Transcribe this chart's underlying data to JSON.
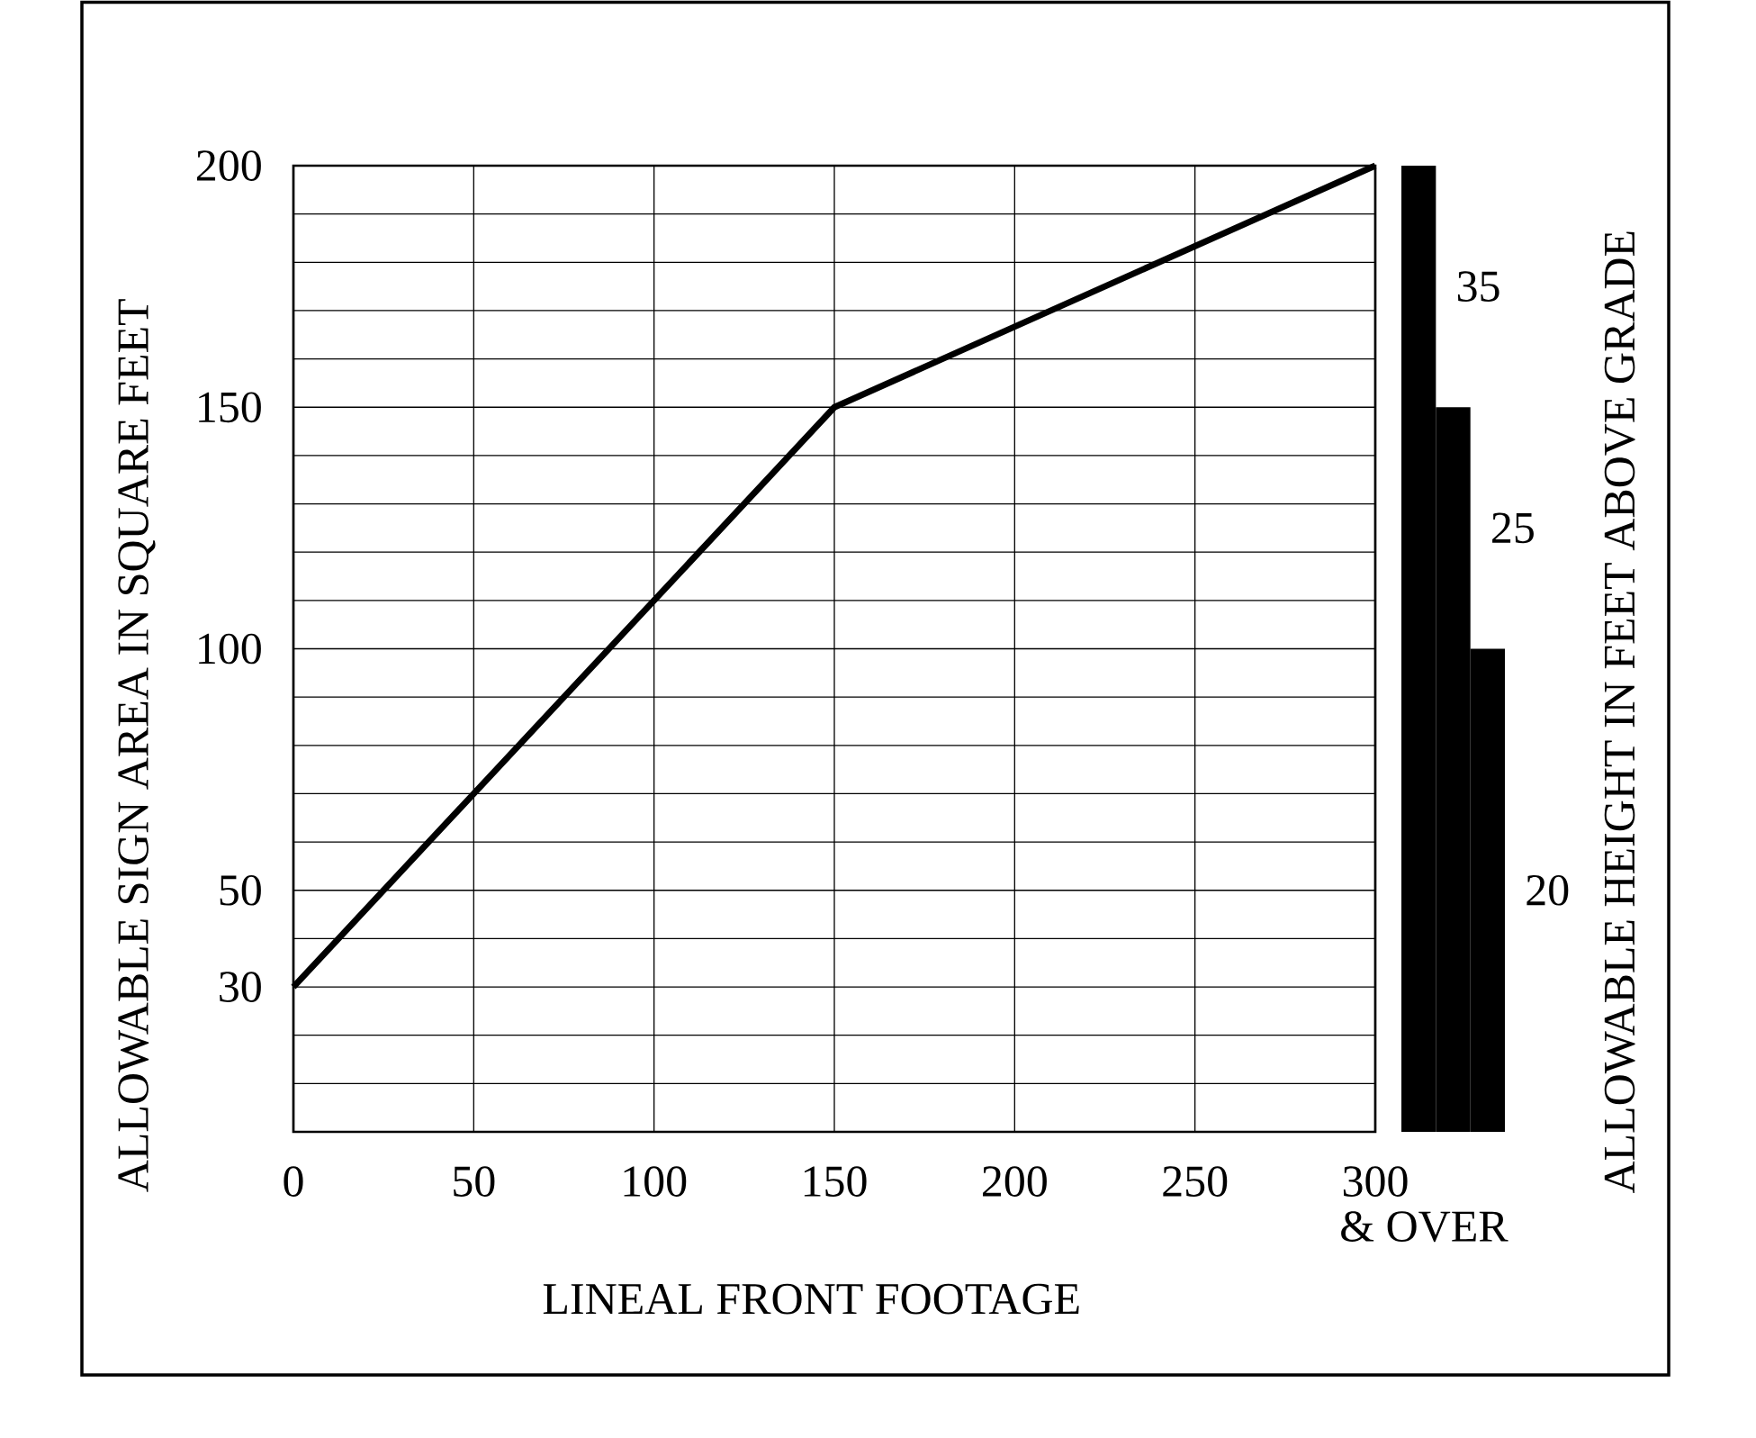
{
  "chart_data": [
    {
      "type": "line",
      "x": [
        0,
        150,
        300
      ],
      "values": [
        30,
        150,
        200
      ],
      "color": "#000000",
      "xlabel": "LINEAL FRONT FOOTAGE",
      "ylabel": "ALLOWABLE SIGN AREA IN SQUARE FEET",
      "xlim": [
        0,
        300
      ],
      "ylim": [
        0,
        200
      ],
      "xticks": [
        0,
        50,
        100,
        150,
        200,
        250,
        300
      ],
      "yticks": [
        {
          "value": 10,
          "label": null
        },
        {
          "value": 20,
          "label": null
        },
        30,
        {
          "value": 40,
          "label": null
        },
        50,
        {
          "value": 60,
          "label": null
        },
        {
          "value": 70,
          "label": null
        },
        {
          "value": 80,
          "label": null
        },
        {
          "value": 90,
          "label": null
        },
        100,
        {
          "value": 110,
          "label": null
        },
        {
          "value": 120,
          "label": null
        },
        {
          "value": 130,
          "label": null
        },
        {
          "value": 140,
          "label": null
        },
        150,
        {
          "value": 160,
          "label": null
        },
        {
          "value": 170,
          "label": null
        },
        {
          "value": 180,
          "label": null
        },
        {
          "value": 190,
          "label": null
        },
        200
      ],
      "grid": true,
      "annotations": [
        "& OVER"
      ]
    },
    {
      "type": "bar",
      "categories": [
        null,
        null,
        null
      ],
      "values": [
        200,
        150,
        100
      ],
      "color": "#000000",
      "annotations": [
        "35",
        "25",
        "20"
      ],
      "ylabel": "ALLOWABLE HEIGHT IN FEET ABOVE GRADE",
      "ylim": [
        0,
        200
      ],
      "tick_labels": false
    }
  ]
}
